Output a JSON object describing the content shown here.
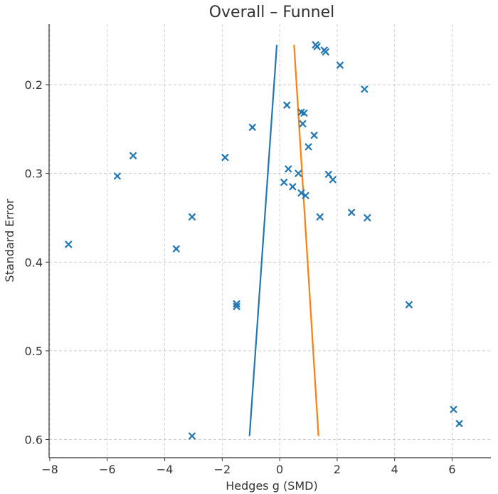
{
  "chart_data": {
    "type": "scatter",
    "title": "Overall – Funnel",
    "xlabel": "Hedges g (SMD)",
    "ylabel": "Standard Error",
    "xlim": [
      -8,
      6.7
    ],
    "ylim": [
      0.145,
      0.6
    ],
    "y_inverted": true,
    "grid": true,
    "x_ticks": [
      "−8",
      "−6",
      "−4",
      "−2",
      "0",
      "2",
      "4",
      "6"
    ],
    "x_tick_values": [
      -8,
      -6,
      -4,
      -2,
      0,
      2,
      4,
      6
    ],
    "y_ticks": [
      "0.2",
      "0.3",
      "0.4",
      "0.5",
      "0.6"
    ],
    "y_tick_values": [
      0.2,
      0.3,
      0.4,
      0.5,
      0.6
    ],
    "colors": {
      "points": "#1f77b4",
      "line1": "#1f77b4",
      "line2": "#ff7f0e"
    },
    "points": [
      {
        "x": 1.25,
        "y": 0.155
      },
      {
        "x": 1.3,
        "y": 0.157
      },
      {
        "x": 1.55,
        "y": 0.161
      },
      {
        "x": 1.6,
        "y": 0.163
      },
      {
        "x": 2.1,
        "y": 0.178
      },
      {
        "x": 2.95,
        "y": 0.205
      },
      {
        "x": 0.25,
        "y": 0.223
      },
      {
        "x": 0.75,
        "y": 0.231
      },
      {
        "x": 0.85,
        "y": 0.232
      },
      {
        "x": 0.8,
        "y": 0.244
      },
      {
        "x": -0.95,
        "y": 0.248
      },
      {
        "x": 1.2,
        "y": 0.257
      },
      {
        "x": 1.0,
        "y": 0.27
      },
      {
        "x": -5.1,
        "y": 0.28
      },
      {
        "x": -1.9,
        "y": 0.282
      },
      {
        "x": 0.3,
        "y": 0.295
      },
      {
        "x": -5.65,
        "y": 0.303
      },
      {
        "x": 0.65,
        "y": 0.3
      },
      {
        "x": 1.7,
        "y": 0.301
      },
      {
        "x": 1.85,
        "y": 0.307
      },
      {
        "x": 0.15,
        "y": 0.31
      },
      {
        "x": 0.45,
        "y": 0.315
      },
      {
        "x": 0.75,
        "y": 0.322
      },
      {
        "x": 0.9,
        "y": 0.325
      },
      {
        "x": 2.5,
        "y": 0.344
      },
      {
        "x": -3.05,
        "y": 0.349
      },
      {
        "x": 1.4,
        "y": 0.349
      },
      {
        "x": 3.05,
        "y": 0.35
      },
      {
        "x": -7.35,
        "y": 0.38
      },
      {
        "x": -3.6,
        "y": 0.385
      },
      {
        "x": -1.5,
        "y": 0.447
      },
      {
        "x": -1.5,
        "y": 0.45
      },
      {
        "x": 4.5,
        "y": 0.448
      },
      {
        "x": 6.05,
        "y": 0.566
      },
      {
        "x": 6.25,
        "y": 0.582
      },
      {
        "x": -3.05,
        "y": 0.596
      }
    ],
    "lines": [
      {
        "x": [
          -1.05,
          -0.1
        ],
        "y": [
          0.596,
          0.155
        ]
      },
      {
        "x": 1.35,
        "y": 0.596,
        "x2": 0.5,
        "y2": 0.155
      }
    ]
  }
}
